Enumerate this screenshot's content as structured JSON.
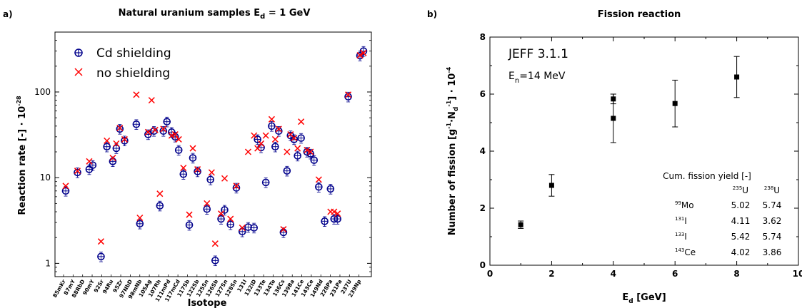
{
  "chart_data": [
    {
      "panel": "a)",
      "type": "scatter",
      "title": "Natural uranium samples E",
      "title_sub": "d",
      "title_tail": " = 1 GeV",
      "xlabel": "Isotope",
      "ylabel": "Reaction rate [-] · 10",
      "ylabel_exp": "-28",
      "yscale": "log",
      "ylim": [
        0.7,
        500
      ],
      "ytick_labels": [
        "1",
        "10",
        "100"
      ],
      "categories": [
        "85mKr",
        "87mY",
        "88RbD",
        "90mY",
        "92Sr",
        "94Ru",
        "95Zr",
        "97NbD",
        "98mNb",
        "105Ag",
        "107Rh",
        "111mPd",
        "117mCd",
        "117Sb",
        "122Sb",
        "125Sn",
        "126Sb",
        "127Sn",
        "128Sn",
        "131I",
        "132ID",
        "133Te",
        "134Te",
        "136Cs",
        "139Ba",
        "141Ce",
        "143Ce",
        "149Nd",
        "228Pa",
        "231Pa",
        "237U",
        "239Np"
      ],
      "series": [
        {
          "name": "Cd shielding",
          "marker": "circle-plus",
          "color": "#00008b",
          "points": [
            [
              1,
              7
            ],
            [
              2,
              11.5
            ],
            [
              3,
              12.5
            ],
            [
              3.3,
              14
            ],
            [
              4,
              1.2
            ],
            [
              4.5,
              23
            ],
            [
              5,
              15.5
            ],
            [
              5.3,
              22
            ],
            [
              5.6,
              37
            ],
            [
              6,
              27
            ],
            [
              7,
              42
            ],
            [
              7.3,
              2.9
            ],
            [
              8,
              32
            ],
            [
              8.5,
              35
            ],
            [
              9,
              4.7
            ],
            [
              9.3,
              35
            ],
            [
              9.6,
              45
            ],
            [
              10,
              34
            ],
            [
              10.3,
              30
            ],
            [
              10.6,
              21
            ],
            [
              11,
              11
            ],
            [
              11.5,
              2.8
            ],
            [
              11.8,
              17
            ],
            [
              12.2,
              11.8
            ],
            [
              13,
              4.3
            ],
            [
              13.3,
              9.5
            ],
            [
              13.7,
              1.08
            ],
            [
              14.2,
              3.3
            ],
            [
              14.5,
              4.2
            ],
            [
              15,
              2.85
            ],
            [
              15.5,
              7.6
            ],
            [
              16,
              2.35
            ],
            [
              16.5,
              2.65
            ],
            [
              17,
              2.6
            ],
            [
              17.3,
              28
            ],
            [
              17.6,
              22.5
            ],
            [
              18,
              8.8
            ],
            [
              18.5,
              40
            ],
            [
              18.8,
              23
            ],
            [
              19.1,
              35
            ],
            [
              19.5,
              2.3
            ],
            [
              19.8,
              12
            ],
            [
              20.1,
              31
            ],
            [
              20.4,
              28
            ],
            [
              20.7,
              18
            ],
            [
              21,
              29
            ],
            [
              21.5,
              20
            ],
            [
              21.8,
              19
            ],
            [
              22.1,
              16
            ],
            [
              22.5,
              7.8
            ],
            [
              23,
              3.1
            ],
            [
              23.5,
              7.4
            ],
            [
              23.8,
              3.3
            ],
            [
              24.1,
              3.3
            ],
            [
              25,
              88
            ],
            [
              26,
              265
            ],
            [
              26.3,
              300
            ]
          ]
        },
        {
          "name": "no shielding",
          "marker": "x",
          "color": "#ff0000",
          "points": [
            [
              1,
              8
            ],
            [
              2,
              12
            ],
            [
              3,
              15.5
            ],
            [
              4,
              1.8
            ],
            [
              4.5,
              27
            ],
            [
              5,
              17
            ],
            [
              5.3,
              25
            ],
            [
              5.6,
              38
            ],
            [
              6,
              28
            ],
            [
              7,
              93
            ],
            [
              7.3,
              3.4
            ],
            [
              8,
              34
            ],
            [
              8.3,
              80
            ],
            [
              8.6,
              36
            ],
            [
              9,
              6.5
            ],
            [
              9.3,
              37
            ],
            [
              10,
              31
            ],
            [
              10.3,
              32
            ],
            [
              10.6,
              28
            ],
            [
              11,
              13
            ],
            [
              11.5,
              3.7
            ],
            [
              11.8,
              22
            ],
            [
              12.2,
              12.5
            ],
            [
              13,
              5
            ],
            [
              13.4,
              11.5
            ],
            [
              13.7,
              1.7
            ],
            [
              14.2,
              3.8
            ],
            [
              14.5,
              9.8
            ],
            [
              15,
              3.3
            ],
            [
              15.5,
              8
            ],
            [
              16,
              2.6
            ],
            [
              16.5,
              20
            ],
            [
              17,
              31
            ],
            [
              17.3,
              22
            ],
            [
              17.6,
              25
            ],
            [
              18,
              31
            ],
            [
              18.5,
              48
            ],
            [
              18.8,
              28
            ],
            [
              19.1,
              37
            ],
            [
              19.5,
              2.5
            ],
            [
              19.8,
              20
            ],
            [
              20.1,
              32
            ],
            [
              20.4,
              29
            ],
            [
              20.7,
              22
            ],
            [
              21,
              45
            ],
            [
              21.5,
              21
            ],
            [
              21.8,
              20
            ],
            [
              22.5,
              9.5
            ],
            [
              23.5,
              4
            ],
            [
              23.8,
              4
            ],
            [
              24.1,
              3.8
            ],
            [
              25,
              93
            ],
            [
              26,
              268
            ],
            [
              26.3,
              285
            ]
          ]
        }
      ],
      "legend": {
        "position": "top-left",
        "entries": [
          "Cd shielding",
          "no shielding"
        ]
      }
    },
    {
      "panel": "b)",
      "type": "scatter",
      "title": "Fission reaction",
      "xlabel": "E",
      "xlabel_sub": "d",
      "xlabel_tail": " [GeV]",
      "ylabel": "Number of fission [g",
      "ylabel_tail": "·N",
      "ylabel_end": "] · 10",
      "ylabel_exp": "-4",
      "xlim": [
        0,
        10
      ],
      "ylim": [
        0,
        8
      ],
      "xticks": [
        0,
        2,
        4,
        6,
        8,
        10
      ],
      "yticks": [
        0,
        2,
        4,
        6,
        8
      ],
      "annotation_1": "JEFF 3.1.1",
      "annotation_2": "E",
      "annotation_2_sub": "n",
      "annotation_2_tail": "=14 MeV",
      "points": [
        {
          "x": 1,
          "y": 1.42,
          "err": 0.13
        },
        {
          "x": 2,
          "y": 2.8,
          "err": 0.38
        },
        {
          "x": 4,
          "y": 5.83,
          "err": 0.17
        },
        {
          "x": 4,
          "y": 5.15,
          "err": 0.85
        },
        {
          "x": 6,
          "y": 5.67,
          "err": 0.82
        },
        {
          "x": 8,
          "y": 6.6,
          "err": 0.72
        }
      ],
      "table": {
        "title": "Cum. fission yield [-]",
        "header": [
          "",
          "235U",
          "238U"
        ],
        "rows": [
          {
            "iso_mass": "99",
            "iso_el": "Mo",
            "u235": "5.02",
            "u238": "5.74"
          },
          {
            "iso_mass": "131",
            "iso_el": "I",
            "u235": "4.11",
            "u238": "3.62"
          },
          {
            "iso_mass": "133",
            "iso_el": "I",
            "u235": "5.42",
            "u238": "5.74"
          },
          {
            "iso_mass": "143",
            "iso_el": "Ce",
            "u235": "4.02",
            "u238": "3.86"
          }
        ]
      }
    }
  ]
}
